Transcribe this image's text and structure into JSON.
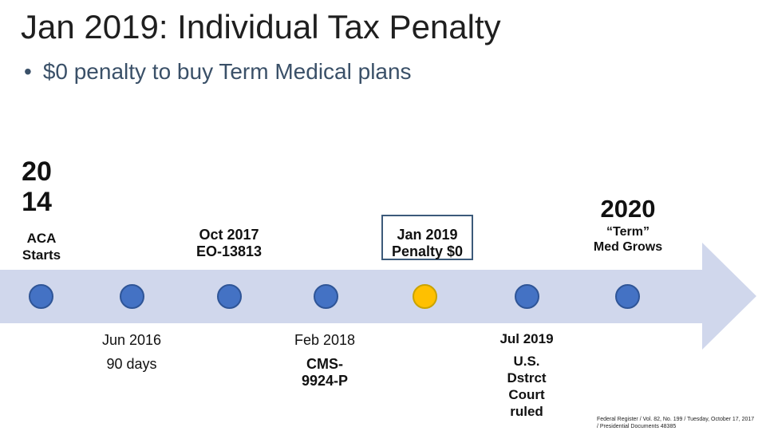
{
  "title": "Jan 2019: Individual Tax Penalty",
  "bullet": "$0 penalty to buy Term Medical plans",
  "year_start": "2014",
  "year_end": "2020",
  "colors": {
    "arrow": "#d0d7ec",
    "node": "#4472c4",
    "node_highlight": "#ffc000",
    "box_border": "#3c5a7a"
  },
  "events_top": [
    {
      "label1": "ACA",
      "label2": "Starts"
    },
    {
      "label1": "Oct 2017",
      "label2": "EO-13813"
    },
    {
      "label1": "Jan 2019",
      "label2": "Penalty $0"
    },
    {
      "label1": "“Term”",
      "label2": "Med Grows"
    }
  ],
  "events_bottom": [
    {
      "label1": "Jun 2016",
      "label2": "90 days"
    },
    {
      "label1": "Feb 2018",
      "label2": "CMS-",
      "label3": "9924-P"
    },
    {
      "label1": "Jul 2019",
      "label2": "U.S.",
      "label3": "Dstrct",
      "label4": "Court",
      "label5": "ruled"
    }
  ],
  "footnote": "Federal Register / Vol. 82, No. 199 / Tuesday, October 17, 2017 / Presidential Documents 48385"
}
